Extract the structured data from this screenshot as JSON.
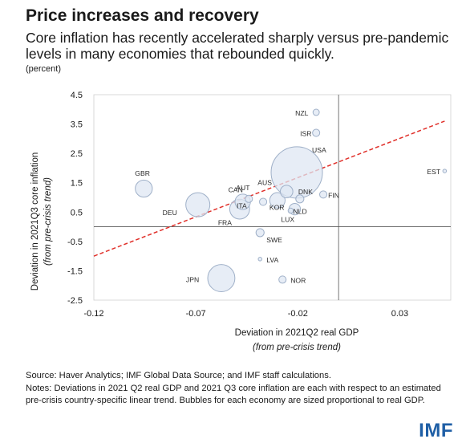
{
  "title": "Price increases and recovery",
  "subtitle": "Core inflation has recently accelerated sharply versus pre-pandemic levels in many economies that rebounded quickly.",
  "unit_note": "(percent)",
  "source": "Source: Haver Analytics; IMF Global Data Source; and IMF staff calculations.",
  "notes": "Notes: Deviations in 2021 Q2 real GDP and 2021 Q3 core inflation are each with respect to an estimated pre-crisis country-specific linear trend. Bubbles for each economy are sized proportional to real GDP.",
  "logo": "IMF",
  "colors": {
    "bubble_fill": "#dfe7f3",
    "bubble_stroke": "#9fb0c8",
    "trend_line": "#e0302a",
    "axis": "#555555",
    "logo": "#1f5fa6"
  },
  "chart_data": {
    "type": "scatter",
    "title": "",
    "xlabel": "Deviation in 2021Q2 real GDP",
    "xlabel_sub": "(from pre-crisis trend)",
    "ylabel": "Deviation in 2021Q3 core inflation",
    "ylabel_sub": "(from pre-crisis trend)",
    "xlim": [
      -0.12,
      0.055
    ],
    "ylim": [
      -2.5,
      4.5
    ],
    "xticks": [
      -0.12,
      -0.07,
      -0.02,
      0.03
    ],
    "xtick_labels": [
      "-0.12",
      "-0.07",
      "-0.02",
      "0.03"
    ],
    "yticks": [
      4.5,
      3.5,
      2.5,
      1.5,
      0.5,
      -0.5,
      -1.5,
      -2.5
    ],
    "ytick_labels": [
      "4.5",
      "3.5",
      "2.5",
      "1.5",
      "0.5",
      "-0.5",
      "-1.5",
      "-2.5"
    ],
    "reference_lines": {
      "x": 0,
      "y": 0
    },
    "trendline": {
      "x": [
        -0.12,
        0.052
      ],
      "y": [
        -1.0,
        3.6
      ]
    },
    "grid": false,
    "points": [
      {
        "label": "NZL",
        "x": -0.011,
        "y": 3.9,
        "size": 1.5
      },
      {
        "label": "ISR",
        "x": -0.011,
        "y": 3.2,
        "size": 2
      },
      {
        "label": "USA",
        "x": -0.0205,
        "y": 1.85,
        "size": 100
      },
      {
        "label": "AUS",
        "x": -0.0255,
        "y": 1.2,
        "size": 6
      },
      {
        "label": "EST",
        "x": 0.052,
        "y": 1.9,
        "size": 0.5
      },
      {
        "label": "FIN",
        "x": -0.0075,
        "y": 1.1,
        "size": 2
      },
      {
        "label": "DNK",
        "x": -0.019,
        "y": 0.95,
        "size": 2.5
      },
      {
        "label": "NLD",
        "x": -0.0215,
        "y": 0.6,
        "size": 5
      },
      {
        "label": "LUX",
        "x": -0.0235,
        "y": 0.55,
        "size": 1
      },
      {
        "label": "KOR",
        "x": -0.03,
        "y": 0.9,
        "size": 9
      },
      {
        "label": "ITA",
        "x": -0.037,
        "y": 0.85,
        "size": 2
      },
      {
        "label": "GBR",
        "x": -0.0955,
        "y": 1.3,
        "size": 11
      },
      {
        "label": "CAN",
        "x": -0.047,
        "y": 0.85,
        "size": 9
      },
      {
        "label": "AUT",
        "x": -0.044,
        "y": 0.95,
        "size": 2
      },
      {
        "label": "DEU",
        "x": -0.069,
        "y": 0.75,
        "size": 22
      },
      {
        "label": "FRA",
        "x": -0.0485,
        "y": 0.6,
        "size": 15
      },
      {
        "label": "SWE",
        "x": -0.0385,
        "y": -0.2,
        "size": 2.5
      },
      {
        "label": "LVA",
        "x": -0.0385,
        "y": -1.1,
        "size": 0.5
      },
      {
        "label": "NOR",
        "x": -0.0275,
        "y": -1.8,
        "size": 2
      },
      {
        "label": "JPN",
        "x": -0.0575,
        "y": -1.75,
        "size": 28
      }
    ]
  }
}
